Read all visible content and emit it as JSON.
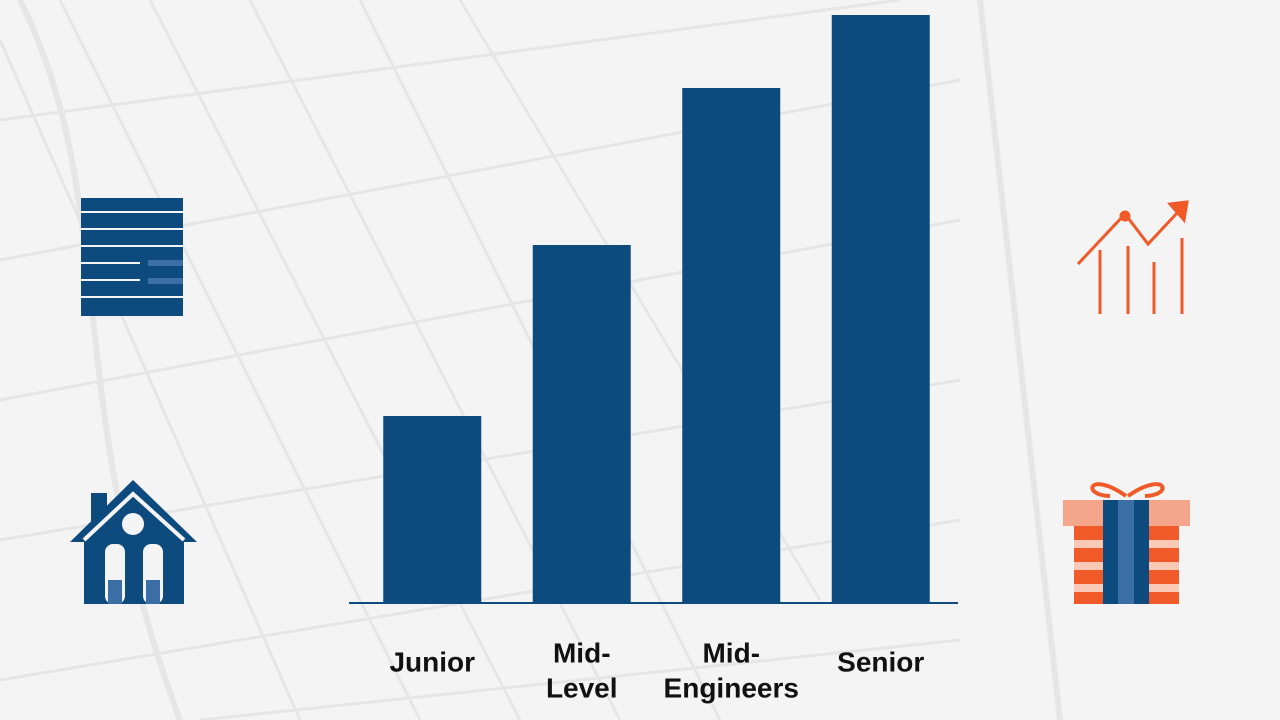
{
  "chart_data": {
    "type": "bar",
    "categories": [
      [
        "Junior"
      ],
      [
        "Mid-",
        "Level"
      ],
      [
        "Mid-",
        "Engineers"
      ],
      [
        "Senior"
      ]
    ],
    "values": [
      187,
      358,
      515,
      588
    ],
    "color": "#0d4a7e",
    "ylim": [
      0,
      600
    ]
  }
}
